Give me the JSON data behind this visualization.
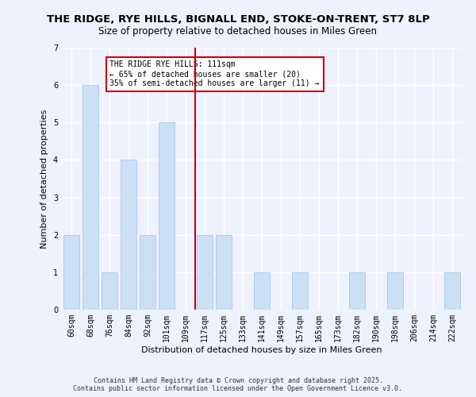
{
  "title_line1": "THE RIDGE, RYE HILLS, BIGNALL END, STOKE-ON-TRENT, ST7 8LP",
  "title_line2": "Size of property relative to detached houses in Miles Green",
  "xlabel": "Distribution of detached houses by size in Miles Green",
  "ylabel": "Number of detached properties",
  "categories": [
    "60sqm",
    "68sqm",
    "76sqm",
    "84sqm",
    "92sqm",
    "101sqm",
    "109sqm",
    "117sqm",
    "125sqm",
    "133sqm",
    "141sqm",
    "149sqm",
    "157sqm",
    "165sqm",
    "173sqm",
    "182sqm",
    "190sqm",
    "198sqm",
    "206sqm",
    "214sqm",
    "222sqm"
  ],
  "values": [
    2,
    6,
    1,
    4,
    2,
    5,
    0,
    2,
    2,
    0,
    1,
    0,
    1,
    0,
    0,
    1,
    0,
    1,
    0,
    0,
    1
  ],
  "bar_color": "#cce0f5",
  "bar_edge_color": "#a8c8e8",
  "vline_color": "#cc0000",
  "annotation_title": "THE RIDGE RYE HILLS: 111sqm",
  "annotation_line2": "← 65% of detached houses are smaller (20)",
  "annotation_line3": "35% of semi-detached houses are larger (11) →",
  "annotation_box_color": "#cc0000",
  "ylim": [
    0,
    7
  ],
  "yticks": [
    0,
    1,
    2,
    3,
    4,
    5,
    6,
    7
  ],
  "footer_line1": "Contains HM Land Registry data © Crown copyright and database right 2025.",
  "footer_line2": "Contains public sector information licensed under the Open Government Licence v3.0.",
  "bg_color": "#eef2ff",
  "plot_bg_color": "#eef2ff",
  "grid_color": "#ffffff",
  "title_fontsize": 9.5,
  "subtitle_fontsize": 8.5,
  "label_fontsize": 8,
  "tick_fontsize": 7,
  "footer_fontsize": 6
}
